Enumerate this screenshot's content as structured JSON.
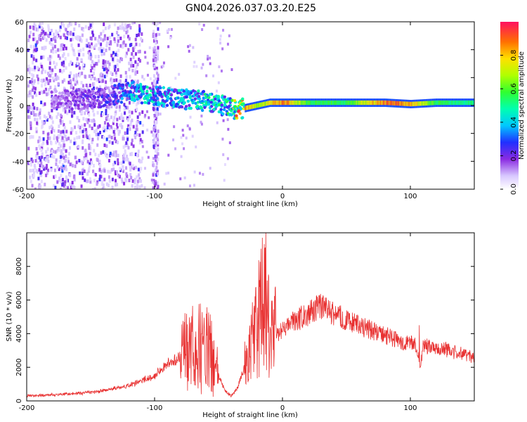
{
  "title": "GN04.2026.037.03.20.E25",
  "chart_data": [
    {
      "type": "heatmap",
      "xlabel": "Height of straight line (km)",
      "ylabel": "Frequency (Hz)",
      "xlim": [
        -200,
        150
      ],
      "ylim": [
        -60,
        60
      ],
      "xticks": [
        -200,
        -100,
        0,
        100
      ],
      "yticks": [
        60,
        40,
        20,
        0,
        -20,
        -40,
        -60
      ],
      "colorbar": {
        "label": "Normalized spectral amplitude",
        "range": [
          0,
          1
        ],
        "ticks": [
          "0.0",
          "0.2",
          "0.4",
          "0.6",
          "0.8"
        ]
      },
      "ridge": {
        "x": [
          -180,
          -160,
          -140,
          -130,
          -120,
          -110,
          -100,
          -90,
          -80,
          -70,
          -60,
          -50,
          -40,
          -35,
          -30,
          -20,
          -10,
          0,
          20,
          50,
          80,
          100,
          120,
          150
        ],
        "freq": [
          5,
          4,
          6,
          8,
          12,
          8,
          7,
          6,
          5,
          4,
          3,
          1,
          -2,
          -3,
          -2,
          0,
          2,
          2,
          2,
          2,
          2,
          1,
          2,
          2
        ],
        "amplitude": [
          0.15,
          0.2,
          0.25,
          0.3,
          0.4,
          0.45,
          0.45,
          0.45,
          0.45,
          0.45,
          0.5,
          0.5,
          0.55,
          0.9,
          0.95,
          0.7,
          0.8,
          0.95,
          0.6,
          0.6,
          0.95,
          0.9,
          0.6,
          0.55
        ]
      }
    },
    {
      "type": "line",
      "xlabel": "Height of straight line (km)",
      "ylabel": "SNR (10 * v/v)",
      "xlim": [
        -200,
        150
      ],
      "ylim": [
        0,
        10000
      ],
      "xticks": [
        -200,
        -100,
        0,
        100
      ],
      "yticks": [
        0,
        2000,
        4000,
        6000,
        8000
      ],
      "series": [
        {
          "color": "#e83030",
          "x": [
            -200,
            -180,
            -160,
            -140,
            -120,
            -110,
            -100,
            -90,
            -80,
            -70,
            -60,
            -55,
            -50,
            -45,
            -40,
            -35,
            -30,
            -25,
            -22,
            -18,
            -15,
            -12,
            -10,
            -5,
            0,
            10,
            20,
            30,
            40,
            50,
            60,
            70,
            80,
            90,
            100,
            105,
            108,
            110,
            120,
            130,
            140,
            150
          ],
          "y": [
            300,
            350,
            450,
            600,
            900,
            1200,
            1500,
            2200,
            2600,
            3000,
            3200,
            2500,
            1500,
            600,
            300,
            800,
            2000,
            3000,
            4000,
            5000,
            6000,
            4500,
            4200,
            4000,
            4200,
            4800,
            5200,
            5600,
            5200,
            4800,
            4500,
            4200,
            3900,
            3600,
            3400,
            3200,
            2000,
            3300,
            3200,
            3000,
            2800,
            2600
          ],
          "spikes": [
            {
              "x": -13,
              "y": 10000
            },
            {
              "x": -17,
              "y": 6500
            },
            {
              "x": 107,
              "y": 4500
            }
          ]
        }
      ]
    }
  ]
}
